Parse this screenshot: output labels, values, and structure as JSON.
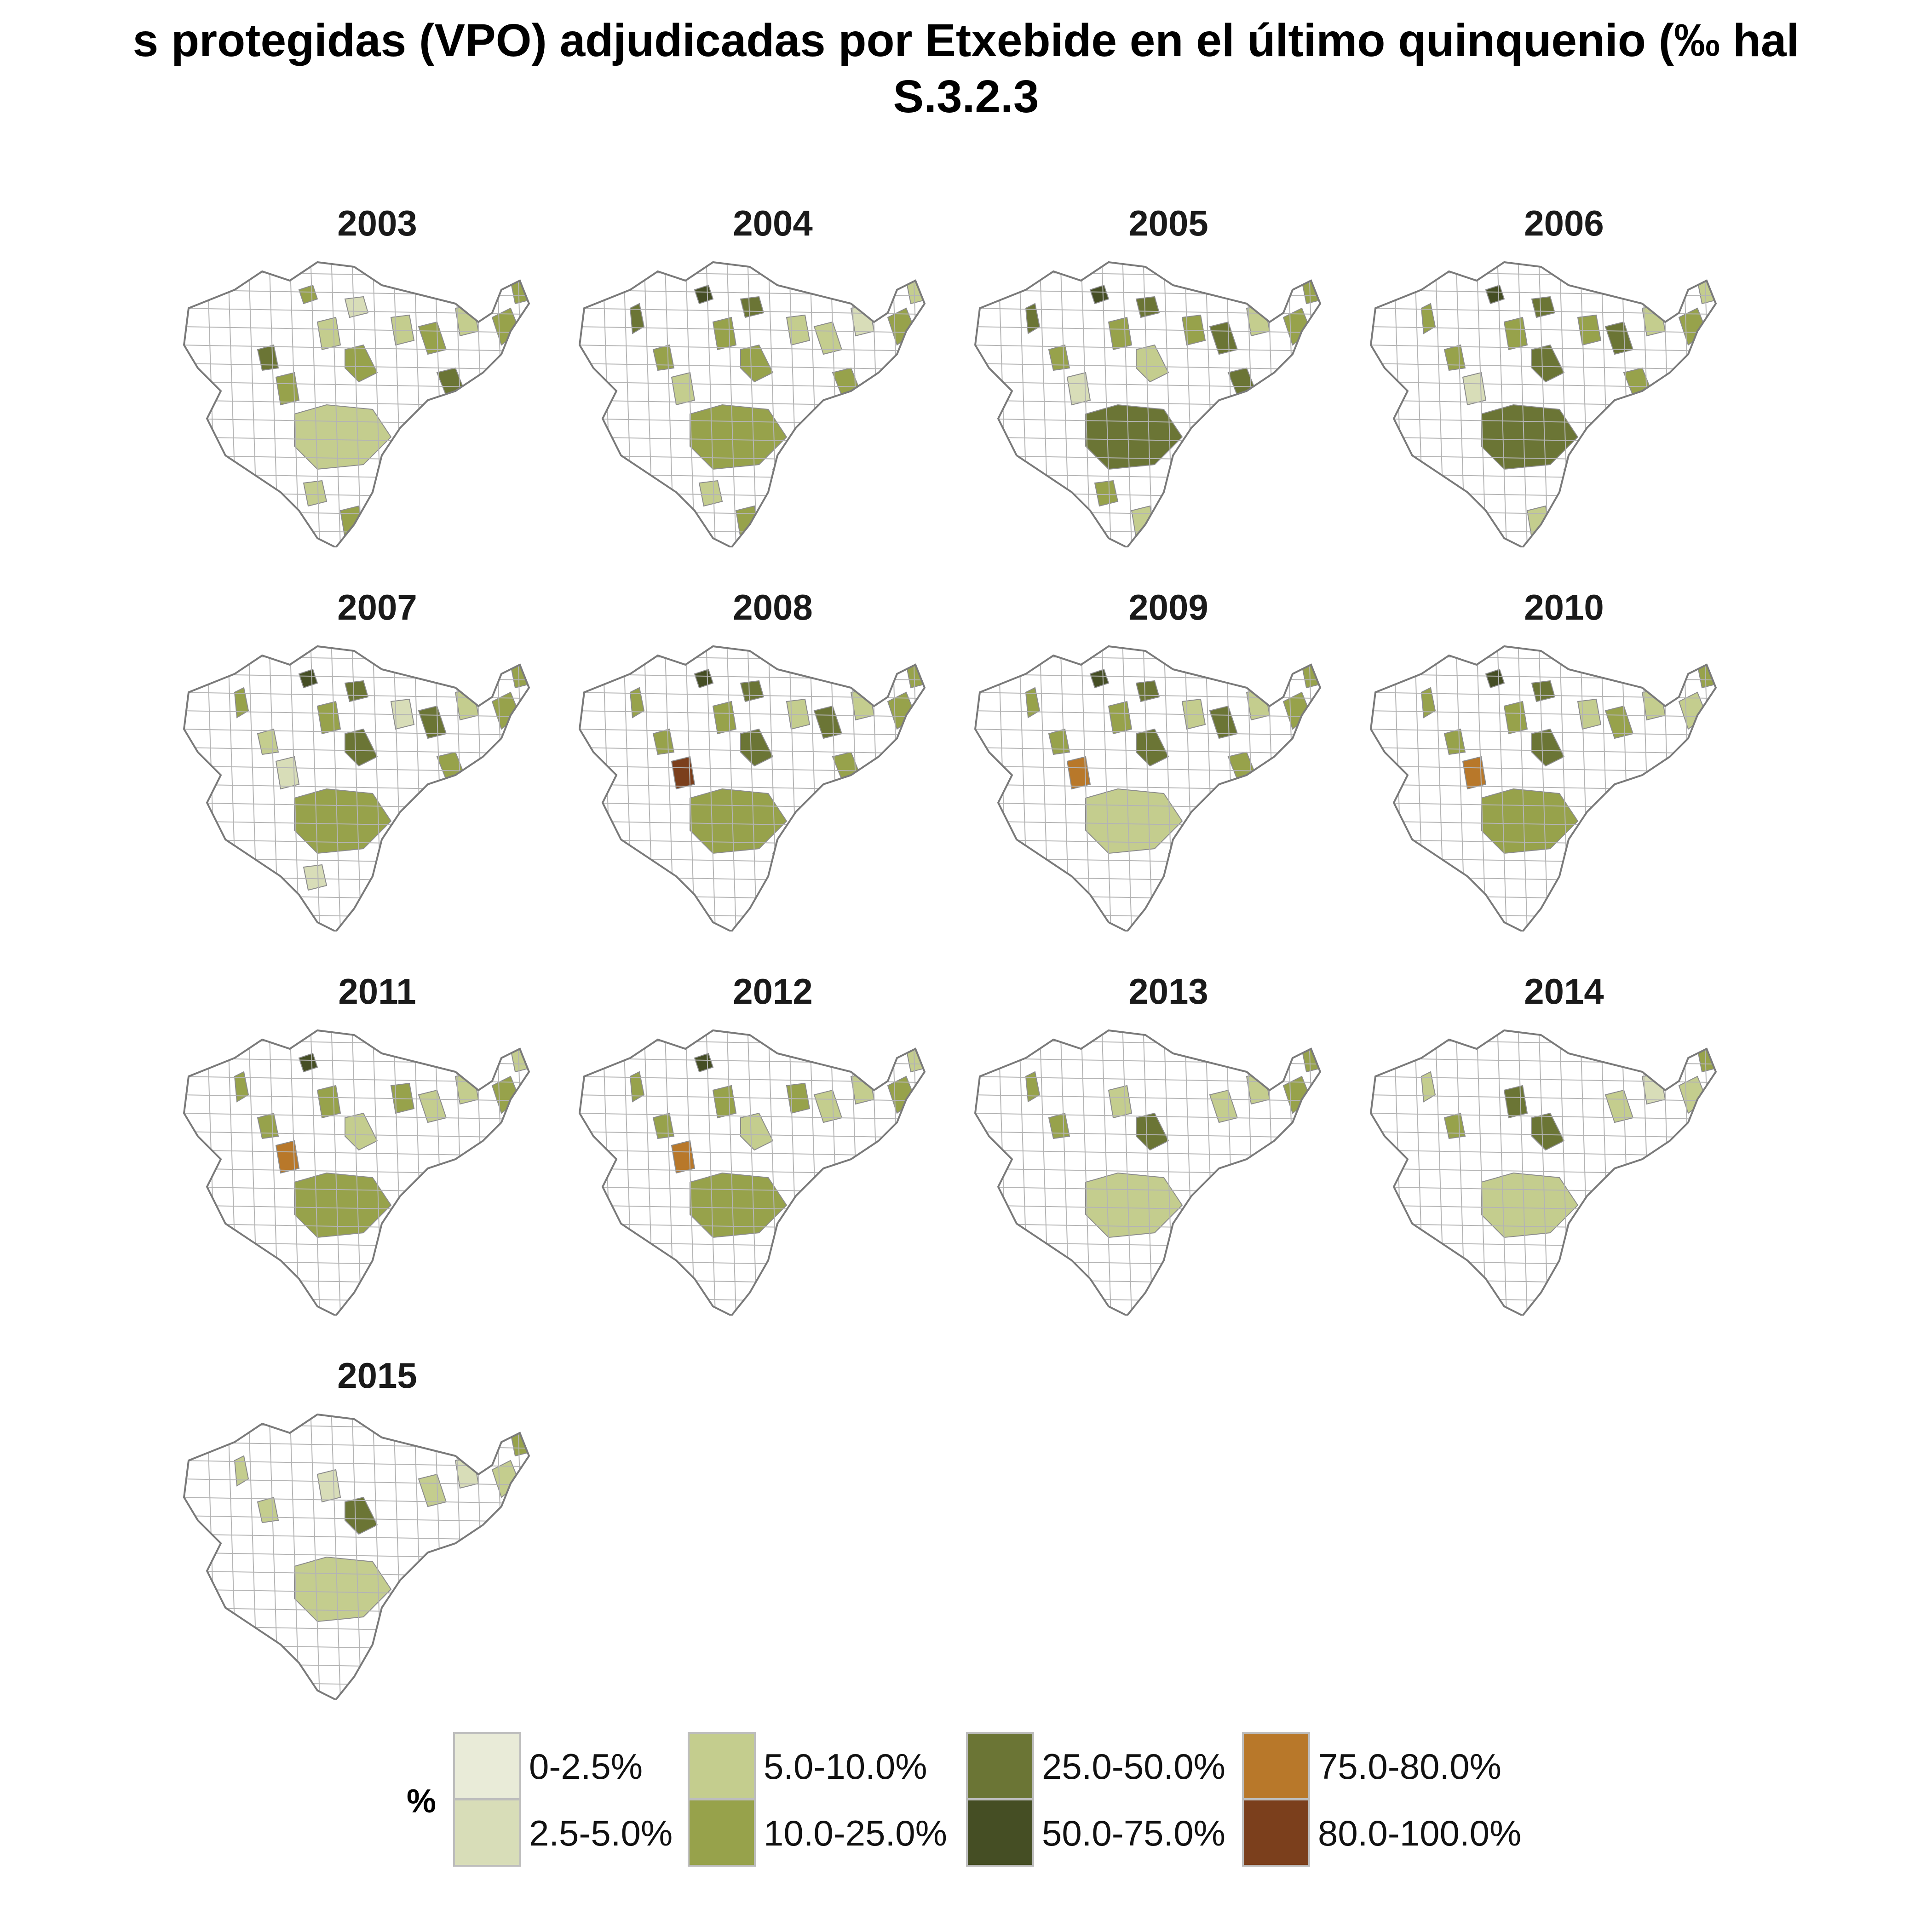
{
  "title": {
    "line1": "s protegidas (VPO) adjudicadas por Etxebide en el último quinquenio (‰ hal",
    "line2": "S.3.2.3"
  },
  "legend": {
    "title": "%",
    "items": [
      {
        "label": "0-2.5%",
        "color": "#e9ebd8"
      },
      {
        "label": "2.5-5.0%",
        "color": "#d8ddb8"
      },
      {
        "label": "5.0-10.0%",
        "color": "#c4cd8e"
      },
      {
        "label": "10.0-25.0%",
        "color": "#97a24b"
      },
      {
        "label": "25.0-50.0%",
        "color": "#6b7535"
      },
      {
        "label": "50.0-75.0%",
        "color": "#454e24"
      },
      {
        "label": "75.0-80.0%",
        "color": "#b8782a"
      },
      {
        "label": "80.0-100.0%",
        "color": "#7b3f1c"
      }
    ]
  },
  "panels": [
    {
      "year": "2003",
      "fills": [
        [
          1,
          3
        ],
        [
          2,
          4
        ],
        [
          3,
          1
        ],
        [
          4,
          3
        ],
        [
          5,
          2
        ],
        [
          6,
          3
        ],
        [
          7,
          2
        ],
        [
          8,
          3
        ],
        [
          9,
          2
        ],
        [
          10,
          3
        ],
        [
          11,
          3
        ],
        [
          12,
          2
        ],
        [
          13,
          4
        ],
        [
          14,
          3
        ],
        [
          15,
          2
        ],
        [
          16,
          3
        ]
      ]
    },
    {
      "year": "2004",
      "fills": [
        [
          0,
          4
        ],
        [
          1,
          5
        ],
        [
          2,
          3
        ],
        [
          3,
          4
        ],
        [
          4,
          2
        ],
        [
          5,
          3
        ],
        [
          6,
          3
        ],
        [
          7,
          2
        ],
        [
          8,
          2
        ],
        [
          9,
          1
        ],
        [
          10,
          3
        ],
        [
          11,
          2
        ],
        [
          12,
          3
        ],
        [
          13,
          3
        ],
        [
          14,
          4
        ],
        [
          15,
          2
        ],
        [
          16,
          3
        ]
      ]
    },
    {
      "year": "2005",
      "fills": [
        [
          0,
          4
        ],
        [
          1,
          5
        ],
        [
          2,
          3
        ],
        [
          3,
          4
        ],
        [
          4,
          1
        ],
        [
          5,
          3
        ],
        [
          6,
          2
        ],
        [
          7,
          3
        ],
        [
          8,
          4
        ],
        [
          9,
          2
        ],
        [
          10,
          3
        ],
        [
          11,
          3
        ],
        [
          12,
          4
        ],
        [
          13,
          4
        ],
        [
          15,
          3
        ],
        [
          16,
          2
        ]
      ]
    },
    {
      "year": "2006",
      "fills": [
        [
          0,
          3
        ],
        [
          1,
          5
        ],
        [
          2,
          3
        ],
        [
          3,
          4
        ],
        [
          4,
          1
        ],
        [
          5,
          3
        ],
        [
          6,
          4
        ],
        [
          7,
          3
        ],
        [
          8,
          4
        ],
        [
          9,
          2
        ],
        [
          10,
          3
        ],
        [
          11,
          2
        ],
        [
          12,
          4
        ],
        [
          13,
          3
        ],
        [
          14,
          3
        ],
        [
          16,
          2
        ]
      ]
    },
    {
      "year": "2007",
      "fills": [
        [
          0,
          3
        ],
        [
          1,
          5
        ],
        [
          2,
          2
        ],
        [
          3,
          4
        ],
        [
          4,
          1
        ],
        [
          5,
          3
        ],
        [
          6,
          4
        ],
        [
          7,
          1
        ],
        [
          8,
          4
        ],
        [
          9,
          2
        ],
        [
          10,
          3
        ],
        [
          11,
          3
        ],
        [
          12,
          3
        ],
        [
          13,
          3
        ],
        [
          14,
          3
        ],
        [
          15,
          1
        ]
      ]
    },
    {
      "year": "2008",
      "fills": [
        [
          0,
          3
        ],
        [
          1,
          5
        ],
        [
          2,
          3
        ],
        [
          3,
          4
        ],
        [
          4,
          7
        ],
        [
          5,
          3
        ],
        [
          6,
          4
        ],
        [
          7,
          2
        ],
        [
          8,
          4
        ],
        [
          9,
          2
        ],
        [
          10,
          3
        ],
        [
          11,
          3
        ],
        [
          12,
          3
        ],
        [
          13,
          3
        ],
        [
          14,
          3
        ]
      ]
    },
    {
      "year": "2009",
      "fills": [
        [
          0,
          3
        ],
        [
          1,
          5
        ],
        [
          2,
          3
        ],
        [
          3,
          4
        ],
        [
          4,
          6
        ],
        [
          5,
          3
        ],
        [
          6,
          4
        ],
        [
          7,
          2
        ],
        [
          8,
          4
        ],
        [
          9,
          2
        ],
        [
          10,
          3
        ],
        [
          11,
          3
        ],
        [
          12,
          2
        ],
        [
          13,
          3
        ],
        [
          14,
          2
        ]
      ]
    },
    {
      "year": "2010",
      "fills": [
        [
          0,
          3
        ],
        [
          1,
          5
        ],
        [
          2,
          3
        ],
        [
          3,
          4
        ],
        [
          4,
          6
        ],
        [
          5,
          3
        ],
        [
          6,
          4
        ],
        [
          7,
          2
        ],
        [
          8,
          3
        ],
        [
          9,
          2
        ],
        [
          10,
          2
        ],
        [
          11,
          3
        ],
        [
          12,
          3
        ],
        [
          14,
          3
        ]
      ]
    },
    {
      "year": "2011",
      "fills": [
        [
          0,
          3
        ],
        [
          1,
          5
        ],
        [
          2,
          3
        ],
        [
          4,
          6
        ],
        [
          5,
          3
        ],
        [
          6,
          2
        ],
        [
          7,
          3
        ],
        [
          8,
          2
        ],
        [
          9,
          2
        ],
        [
          10,
          3
        ],
        [
          11,
          2
        ],
        [
          12,
          3
        ]
      ]
    },
    {
      "year": "2012",
      "fills": [
        [
          0,
          3
        ],
        [
          1,
          5
        ],
        [
          2,
          3
        ],
        [
          4,
          6
        ],
        [
          5,
          3
        ],
        [
          6,
          2
        ],
        [
          7,
          3
        ],
        [
          8,
          2
        ],
        [
          9,
          2
        ],
        [
          10,
          3
        ],
        [
          11,
          2
        ],
        [
          12,
          3
        ]
      ]
    },
    {
      "year": "2013",
      "fills": [
        [
          0,
          3
        ],
        [
          2,
          3
        ],
        [
          5,
          2
        ],
        [
          6,
          4
        ],
        [
          8,
          2
        ],
        [
          9,
          2
        ],
        [
          10,
          3
        ],
        [
          11,
          3
        ],
        [
          12,
          2
        ]
      ]
    },
    {
      "year": "2014",
      "fills": [
        [
          0,
          2
        ],
        [
          2,
          3
        ],
        [
          5,
          4
        ],
        [
          6,
          4
        ],
        [
          8,
          2
        ],
        [
          9,
          1
        ],
        [
          10,
          2
        ],
        [
          11,
          3
        ],
        [
          12,
          2
        ]
      ]
    },
    {
      "year": "2015",
      "fills": [
        [
          0,
          2
        ],
        [
          2,
          2
        ],
        [
          5,
          1
        ],
        [
          6,
          4
        ],
        [
          8,
          2
        ],
        [
          9,
          1
        ],
        [
          10,
          2
        ],
        [
          11,
          3
        ],
        [
          12,
          2
        ]
      ]
    }
  ]
}
